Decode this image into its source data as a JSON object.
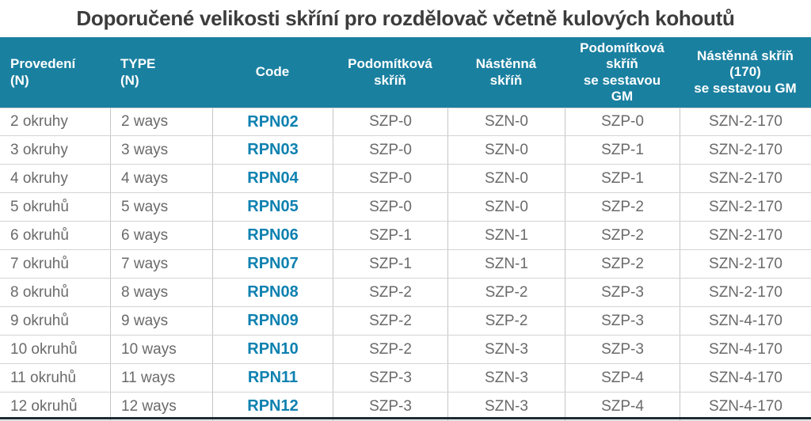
{
  "title": "Doporučené velikosti skříní pro rozdělovač včetně kulových kohoutů",
  "colors": {
    "header_bg": "#1A80A0",
    "header_text": "#FFFFFF",
    "code_text": "#0E81B0",
    "body_text": "#6A6A6A",
    "title_text": "#3C3C3C",
    "grid_vertical": "#C5C5C5",
    "grid_horizontal": "#D4D4D4",
    "bottom_bar": "#1C2B33"
  },
  "chart_data": {
    "type": "table",
    "title": "Doporučené velikosti skříní pro rozdělovač včetně kulových kohoutů",
    "columns": [
      {
        "id": "provedeni",
        "label": "Provedení\n(N)",
        "align": "left"
      },
      {
        "id": "type",
        "label": "TYPE\n(N)",
        "align": "left"
      },
      {
        "id": "code",
        "label": "Code",
        "align": "center"
      },
      {
        "id": "szp",
        "label": "Podomítková\nskříň",
        "align": "center"
      },
      {
        "id": "szn",
        "label": "Nástěnná\nskříň",
        "align": "center"
      },
      {
        "id": "szp_gm",
        "label": "Podomítková\nskříň\nse sestavou\nGM",
        "align": "center"
      },
      {
        "id": "szn_170_gm",
        "label": "Nástěnná skříň\n(170)\nse sestavou GM",
        "align": "center"
      }
    ],
    "rows": [
      [
        "2 okruhy",
        "2 ways",
        "RPN02",
        "SZP-0",
        "SZN-0",
        "SZP-0",
        "SZN-2-170"
      ],
      [
        "3 okruhy",
        "3 ways",
        "RPN03",
        "SZP-0",
        "SZN-0",
        "SZP-1",
        "SZN-2-170"
      ],
      [
        "4 okruhy",
        "4 ways",
        "RPN04",
        "SZP-0",
        "SZN-0",
        "SZP-1",
        "SZN-2-170"
      ],
      [
        "5 okruhů",
        "5 ways",
        "RPN05",
        "SZP-0",
        "SZN-0",
        "SZP-2",
        "SZN-2-170"
      ],
      [
        "6 okruhů",
        "6 ways",
        "RPN06",
        "SZP-1",
        "SZN-1",
        "SZP-2",
        "SZN-2-170"
      ],
      [
        "7 okruhů",
        "7 ways",
        "RPN07",
        "SZP-1",
        "SZN-1",
        "SZP-2",
        "SZN-2-170"
      ],
      [
        "8 okruhů",
        "8 ways",
        "RPN08",
        "SZP-2",
        "SZP-2",
        "SZP-3",
        "SZN-2-170"
      ],
      [
        "9 okruhů",
        "9 ways",
        "RPN09",
        "SZP-2",
        "SZP-2",
        "SZP-3",
        "SZN-4-170"
      ],
      [
        "10 okruhů",
        "10 ways",
        "RPN10",
        "SZP-2",
        "SZN-3",
        "SZP-3",
        "SZN-4-170"
      ],
      [
        "11 okruhů",
        "11 ways",
        "RPN11",
        "SZP-3",
        "SZN-3",
        "SZP-4",
        "SZN-4-170"
      ],
      [
        "12 okruhů",
        "12 ways",
        "RPN12",
        "SZP-3",
        "SZN-3",
        "SZP-4",
        "SZN-4-170"
      ]
    ]
  }
}
